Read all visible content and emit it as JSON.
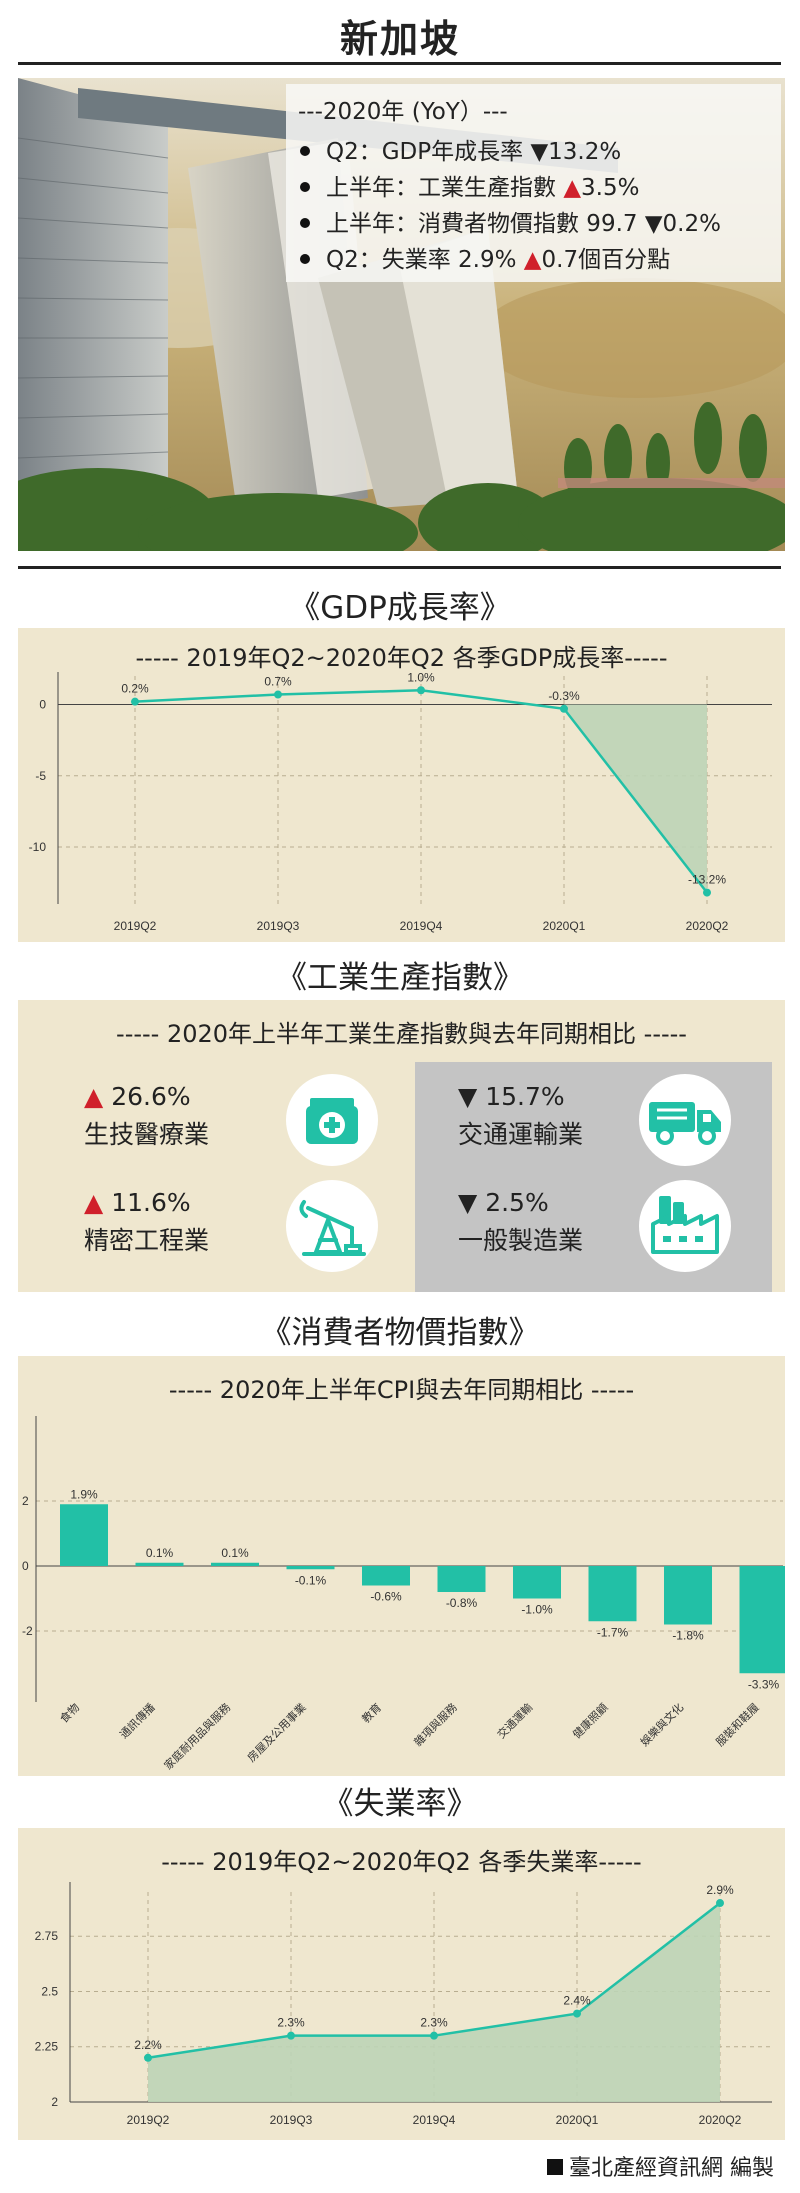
{
  "page_title": "新加坡",
  "colors": {
    "accent": "#22c0a6",
    "panel_bg": "#efe7cf",
    "gray_panel": "#c4c4c4",
    "red": "#d0202b",
    "fill": "#bcd4b6"
  },
  "summary": {
    "heading": "---2020年 (YoY）---",
    "items": [
      {
        "text": "Q2：GDP年成長率 ",
        "arrow": "▼",
        "arrow_color": "black",
        "value": "13.2%"
      },
      {
        "text": "上半年：工業生產指數 ",
        "arrow": "▲",
        "arrow_color": "red",
        "value": "3.5%"
      },
      {
        "text": "上半年：消費者物價指數 99.7 ",
        "arrow": "▼",
        "arrow_color": "black",
        "value": "0.2%"
      },
      {
        "text": "Q2：失業率 2.9% ",
        "arrow": "▲",
        "arrow_color": "red",
        "value": "0.7個百分點"
      }
    ]
  },
  "sections": {
    "gdp": {
      "title": "《GDP成長率》",
      "subtitle": "----- 2019年Q2~2020年Q2 各季GDP成長率-----"
    },
    "ipi": {
      "title": "《工業生產指數》",
      "subtitle": "----- 2020年上半年工業生產指數與去年同期相比 -----"
    },
    "cpi": {
      "title": "《消費者物價指數》",
      "subtitle": "----- 2020年上半年CPI與去年同期相比 -----"
    },
    "unemp": {
      "title": "《失業率》",
      "subtitle": "----- 2019年Q2~2020年Q2 各季失業率-----"
    }
  },
  "industries": [
    {
      "arrow": "▲",
      "value": "26.6%",
      "name": "生技醫療業",
      "icon": "medical-kit-icon"
    },
    {
      "arrow": "▲",
      "value": "11.6%",
      "name": "精密工程業",
      "icon": "oil-pump-icon"
    },
    {
      "arrow": "▼",
      "value": "15.7%",
      "name": "交通運輸業",
      "icon": "truck-icon"
    },
    {
      "arrow": "▼",
      "value": "2.5%",
      "name": "一般製造業",
      "icon": "factory-icon"
    }
  ],
  "chart_data": [
    {
      "type": "area",
      "title": "----- 2019年Q2~2020年Q2 各季GDP成長率-----",
      "categories": [
        "2019Q2",
        "2019Q3",
        "2019Q4",
        "2020Q1",
        "2020Q2"
      ],
      "values": [
        0.2,
        0.7,
        1.0,
        -0.3,
        -13.2
      ],
      "data_labels": [
        "0.2%",
        "0.7%",
        "1.0%",
        "-0.3%",
        "-13.2%"
      ],
      "yticks": [
        0,
        -5,
        -10
      ],
      "ylim": [
        -14,
        2
      ],
      "grid": true
    },
    {
      "type": "bar",
      "title": "----- 2020年上半年CPI與去年同期相比 -----",
      "categories": [
        "食物",
        "通訊傳播",
        "家庭耐用品與服務",
        "房屋及公用事業",
        "教育",
        "雜項與服務",
        "交通運輸",
        "健康照顧",
        "娛樂與文化",
        "服裝和鞋履"
      ],
      "values": [
        1.9,
        0.1,
        0.1,
        -0.1,
        -0.6,
        -0.8,
        -1.0,
        -1.7,
        -1.8,
        -3.3
      ],
      "data_labels": [
        "1.9%",
        "0.1%",
        "0.1%",
        "-0.1%",
        "-0.6%",
        "-0.8%",
        "-1.0%",
        "-1.7%",
        "-1.8%",
        "-3.3%"
      ],
      "yticks": [
        2,
        0,
        -2
      ],
      "ylim": [
        -3.5,
        2.1
      ],
      "grid": true
    },
    {
      "type": "area",
      "title": "----- 2019年Q2~2020年Q2 各季失業率-----",
      "categories": [
        "2019Q2",
        "2019Q3",
        "2019Q4",
        "2020Q1",
        "2020Q2"
      ],
      "values": [
        2.2,
        2.3,
        2.3,
        2.4,
        2.9
      ],
      "data_labels": [
        "2.2%",
        "2.3%",
        "2.3%",
        "2.4%",
        "2.9%"
      ],
      "yticks": [
        2,
        2.25,
        2.5,
        2.75
      ],
      "ylim": [
        2,
        2.95
      ],
      "grid": true
    }
  ],
  "footer": {
    "text": "臺北產經資訊網  編製"
  }
}
